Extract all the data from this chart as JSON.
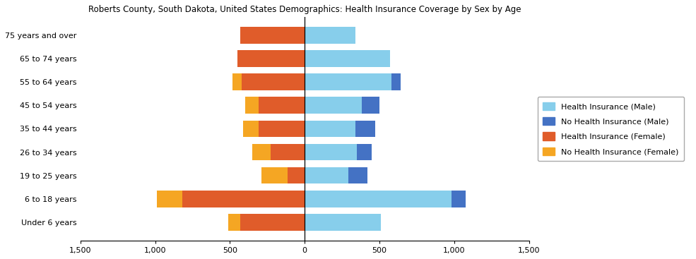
{
  "title": "Roberts County, South Dakota, United States Demographics: Health Insurance Coverage by Sex by Age",
  "age_groups": [
    "Under 6 years",
    "6 to 18 years",
    "19 to 25 years",
    "26 to 34 years",
    "35 to 44 years",
    "45 to 54 years",
    "55 to 64 years",
    "65 to 74 years",
    "75 years and over"
  ],
  "health_ins_male": [
    510,
    980,
    290,
    350,
    340,
    380,
    580,
    570,
    340
  ],
  "no_health_ins_male": [
    0,
    95,
    130,
    100,
    130,
    120,
    60,
    0,
    0
  ],
  "health_ins_female": [
    430,
    820,
    115,
    230,
    310,
    310,
    420,
    450,
    430
  ],
  "no_health_ins_female": [
    80,
    170,
    175,
    120,
    100,
    90,
    65,
    0,
    0
  ],
  "colors": {
    "health_ins_male": "#87CEEB",
    "no_health_ins_male": "#4472C4",
    "health_ins_female": "#E05C2A",
    "no_health_ins_female": "#F5A623"
  },
  "xlim": [
    -1500,
    1500
  ],
  "xticks": [
    -1500,
    -1000,
    -500,
    0,
    500,
    1000,
    1500
  ],
  "xticklabels": [
    "1,500",
    "1,000",
    "500",
    "0",
    "500",
    "1,000",
    "1,500"
  ],
  "legend_labels": [
    "Health Insurance (Male)",
    "No Health Insurance (Male)",
    "Health Insurance (Female)",
    "No Health Insurance (Female)"
  ],
  "legend_colors": [
    "#87CEEB",
    "#4472C4",
    "#E05C2A",
    "#F5A623"
  ]
}
